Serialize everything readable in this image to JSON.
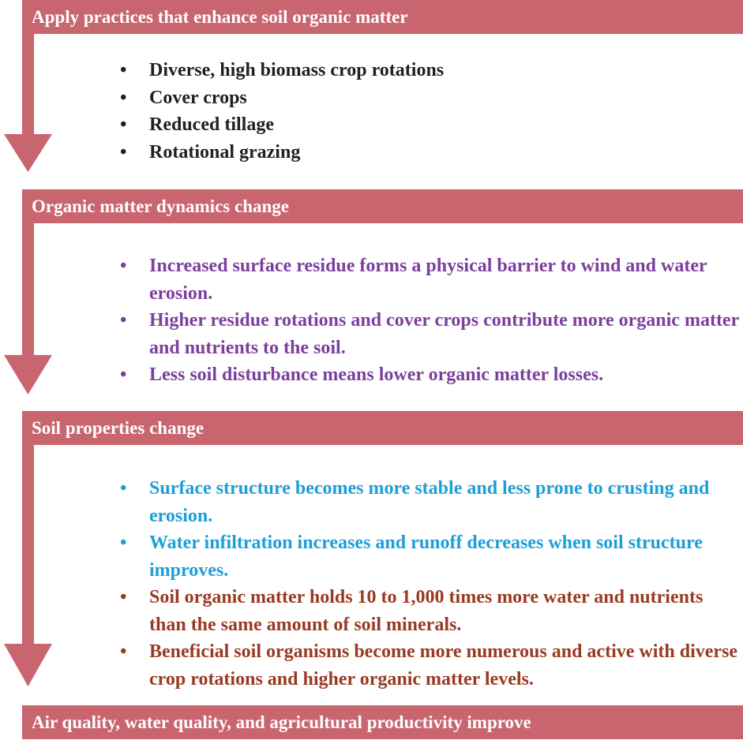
{
  "sections": [
    {
      "header": "Apply practices that enhance soil organic matter",
      "bullets": [
        {
          "text": "Diverse, high biomass crop rotations",
          "color": "#231f20"
        },
        {
          "text": "Cover crops",
          "color": "#231f20"
        },
        {
          "text": "Reduced tillage",
          "color": "#231f20"
        },
        {
          "text": "Rotational grazing",
          "color": "#231f20"
        }
      ]
    },
    {
      "header": "Organic matter dynamics change",
      "bullets": [
        {
          "text": "Increased surface residue forms a physical barrier to wind and water erosion.",
          "color": "#7c3f9e"
        },
        {
          "text": "Higher residue rotations and cover crops contribute more organic matter and nutrients to the soil.",
          "color": "#7c3f9e"
        },
        {
          "text": "Less soil disturbance means lower organic matter losses.",
          "color": "#7c3f9e"
        }
      ]
    },
    {
      "header": "Soil properties change",
      "bullets": [
        {
          "text": "Surface structure becomes more stable and less prone to crusting and erosion.",
          "color": "#1c9fd9"
        },
        {
          "text": "Water infiltration increases and runoff decreases when soil structure improves.",
          "color": "#1c9fd9"
        },
        {
          "text": "Soil organic matter holds 10 to 1,000 times more water and nutrients than the same amount of soil minerals.",
          "color": "#9a3a22"
        },
        {
          "text": "Beneficial soil organisms become more numerous and active with diverse crop rotations and higher organic matter levels.",
          "color": "#9a3a22"
        }
      ]
    },
    {
      "header": "Air quality, water quality, and agricultural productivity improve",
      "bullets": []
    }
  ]
}
